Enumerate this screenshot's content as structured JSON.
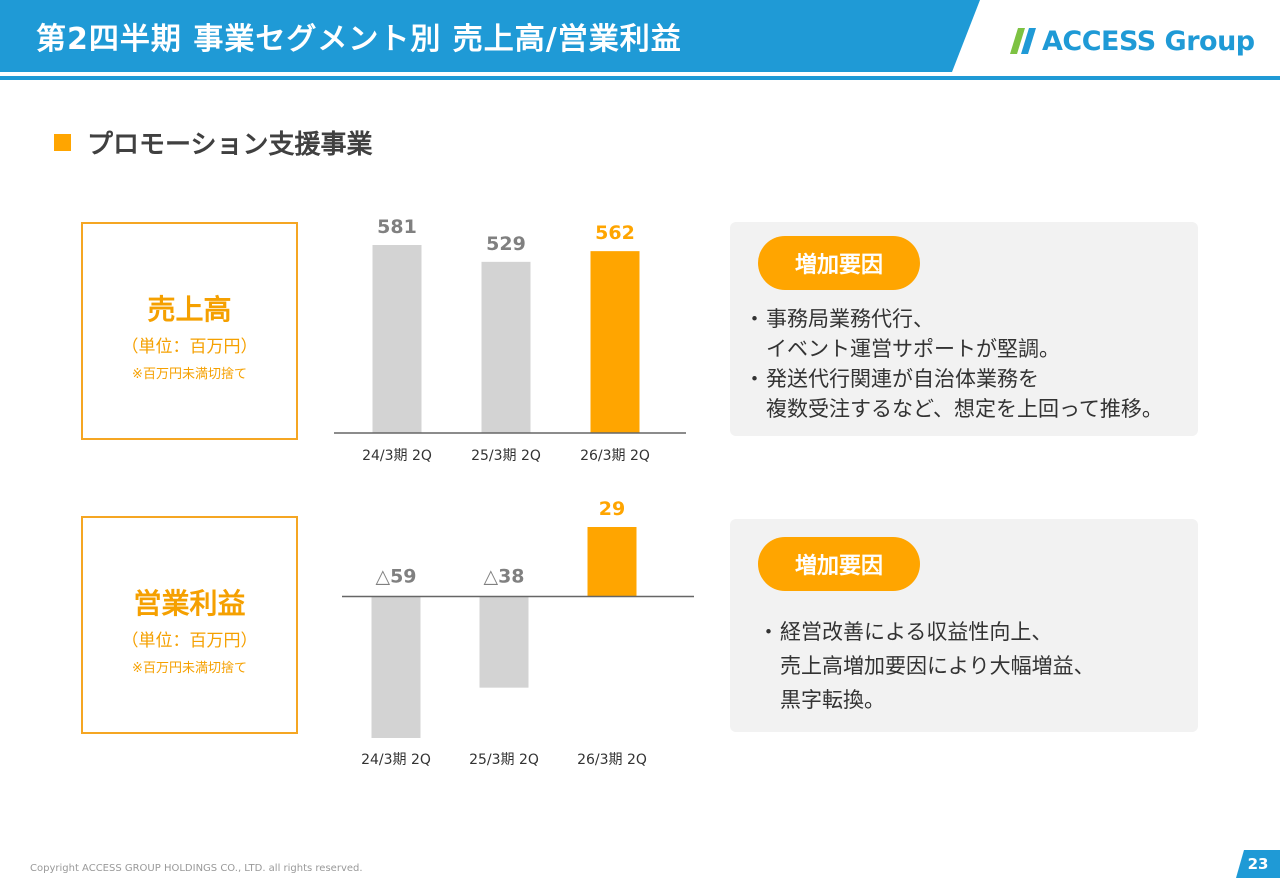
{
  "header": {
    "title": "第2四半期 事業セグメント別 売上高/営業利益",
    "logo": "ACCESS Group",
    "colors": {
      "header_bg": "#1f9ad6",
      "accent": "#ffa500"
    }
  },
  "section": {
    "title": "プロモーション支援事業"
  },
  "sales": {
    "label": "売上高",
    "unit": "（単位：百万円）",
    "note": "※百万円未満切捨て"
  },
  "profit": {
    "label": "営業利益",
    "unit": "（単位：百万円）",
    "note": "※百万円未満切捨て"
  },
  "chart_data": [
    {
      "type": "bar",
      "title": "売上高",
      "categories": [
        "24/3期 2Q",
        "25/3期 2Q",
        "26/3期 2Q"
      ],
      "values": [
        581,
        529,
        562
      ],
      "value_labels": [
        "581",
        "529",
        "562"
      ],
      "highlight_index": 2,
      "ylim": [
        0,
        581
      ]
    },
    {
      "type": "bar",
      "title": "営業利益",
      "categories": [
        "24/3期 2Q",
        "25/3期 2Q",
        "26/3期 2Q"
      ],
      "values": [
        -59,
        -38,
        29
      ],
      "value_labels": [
        "△59",
        "△38",
        "29"
      ],
      "highlight_index": 2,
      "ylim": [
        -59,
        29
      ]
    }
  ],
  "panel_sales": {
    "tag": "増加要因",
    "bullet_mark": "・",
    "lines": [
      "事務局業務代行、",
      "イベント運営サポートが堅調。",
      "発送代行関連が自治体業務を",
      "複数受注するなど、想定を上回って推移。"
    ]
  },
  "panel_profit": {
    "tag": "増加要因",
    "bullet_mark": "・",
    "lines": [
      "経営改善による収益性向上、",
      "売上高増加要因により大幅増益、",
      "黒字転換。"
    ]
  },
  "footer": {
    "copyright": "Copyright ACCESS GROUP HOLDINGS CO., LTD. all rights reserved.",
    "page_number": "23"
  }
}
